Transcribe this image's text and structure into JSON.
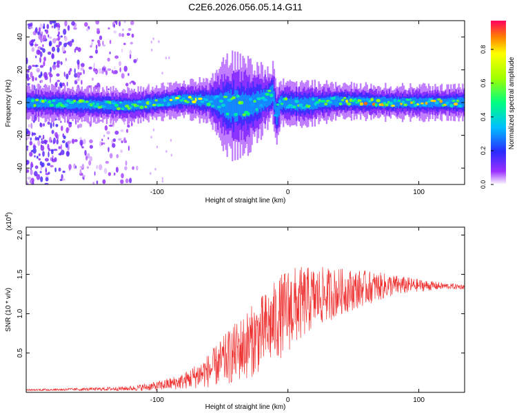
{
  "title": "C2E6.2026.056.05.14.G11",
  "chart_data": [
    {
      "type": "heatmap",
      "xlabel": "Height of straight line (km)",
      "ylabel": "Frequency (Hz)",
      "xlim": [
        -200,
        135
      ],
      "ylim": [
        -50,
        50
      ],
      "xticks": [
        -100,
        0,
        100
      ],
      "yticks": [
        -40,
        -20,
        0,
        20,
        40
      ],
      "colorbar": {
        "label": "Normalized spectral amplitude",
        "range": [
          0,
          0.97
        ],
        "ticks": [
          "0.0",
          "0.2",
          "0.4",
          "0.6",
          "0.8"
        ],
        "tick_values": [
          0,
          0.2,
          0.4,
          0.6,
          0.8
        ]
      },
      "ridge": [
        {
          "x": -200,
          "y": 0,
          "halfwidth": 3
        },
        {
          "x": -120,
          "y": -2,
          "halfwidth": 3
        },
        {
          "x": -80,
          "y": 2,
          "halfwidth": 3
        },
        {
          "x": -60,
          "y": 1,
          "halfwidth": 4
        },
        {
          "x": -45,
          "y": -2,
          "halfwidth": 9
        },
        {
          "x": -30,
          "y": -2,
          "halfwidth": 8
        },
        {
          "x": -15,
          "y": 3,
          "halfwidth": 5
        },
        {
          "x": -12,
          "y": 6,
          "halfwidth": 5
        },
        {
          "x": -9,
          "y": -8,
          "halfwidth": 6
        },
        {
          "x": -6,
          "y": 0,
          "halfwidth": 4
        },
        {
          "x": 10,
          "y": -1,
          "halfwidth": 4
        },
        {
          "x": 40,
          "y": 1,
          "halfwidth": 3
        },
        {
          "x": 80,
          "y": 0,
          "halfwidth": 3
        },
        {
          "x": 135,
          "y": 0,
          "halfwidth": 3
        }
      ]
    },
    {
      "type": "line",
      "xlabel": "Height of straight line (km)",
      "ylabel": "SNR (10 * v/v)",
      "scale_label": "(x10",
      "scale_exponent": "4",
      "xlim": [
        -200,
        135
      ],
      "ylim": [
        0,
        2.1
      ],
      "xticks": [
        -100,
        0,
        100
      ],
      "yticks": [
        0.5,
        1.0,
        1.5,
        2.0
      ],
      "ytick_labels": [
        "0.5",
        "1.0",
        "1.5",
        "2.0"
      ],
      "color": "#ee3333",
      "envelope": {
        "x": [
          -200,
          -150,
          -120,
          -100,
          -80,
          -60,
          -45,
          -30,
          -15,
          0,
          20,
          40,
          60,
          80,
          100,
          120,
          135
        ],
        "mean": [
          0.03,
          0.04,
          0.05,
          0.08,
          0.14,
          0.28,
          0.45,
          0.62,
          0.82,
          1.05,
          1.2,
          1.28,
          1.33,
          1.36,
          1.36,
          1.35,
          1.34
        ],
        "spread": [
          0.01,
          0.02,
          0.03,
          0.06,
          0.1,
          0.22,
          0.35,
          0.45,
          0.5,
          0.55,
          0.4,
          0.3,
          0.22,
          0.14,
          0.08,
          0.04,
          0.03
        ]
      }
    }
  ]
}
